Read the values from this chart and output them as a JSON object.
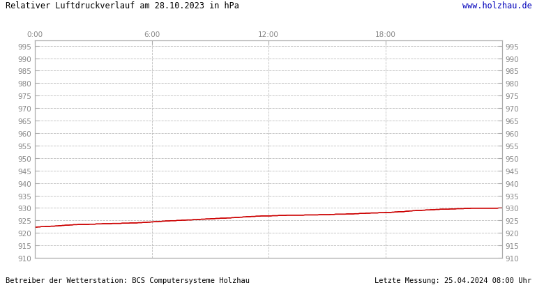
{
  "title": "Relativer Luftdruckverlauf am 28.10.2023 in hPa",
  "url_text": "www.holzhau.de",
  "footer_left": "Betreiber der Wetterstation: BCS Computersysteme Holzhau",
  "footer_right": "Letzte Messung: 25.04.2024 08:00 Uhr",
  "background_color": "#ffffff",
  "plot_bg_color": "#ffffff",
  "grid_color": "#bbbbbb",
  "line_color": "#cc0000",
  "title_color": "#000000",
  "url_color": "#0000bb",
  "footer_color": "#000000",
  "tick_label_color": "#888888",
  "ylim": [
    910,
    997
  ],
  "ytick_min": 910,
  "ytick_max": 995,
  "ytick_step": 5,
  "xtick_labels": [
    "0:00",
    "6:00",
    "12:00",
    "18:00"
  ],
  "xtick_positions": [
    0,
    360,
    720,
    1080
  ],
  "total_minutes": 1439,
  "pressure_data": [
    922.3,
    922.3,
    922.4,
    922.4,
    922.5,
    922.5,
    922.5,
    922.6,
    922.6,
    922.6,
    922.7,
    922.7,
    922.7,
    922.8,
    922.8,
    922.9,
    922.9,
    923.0,
    923.0,
    923.1,
    923.1,
    923.1,
    923.2,
    923.2,
    923.3,
    923.3,
    923.3,
    923.4,
    923.4,
    923.4,
    923.4,
    923.4,
    923.4,
    923.4,
    923.5,
    923.5,
    923.5,
    923.5,
    923.6,
    923.6,
    923.6,
    923.6,
    923.7,
    923.7,
    923.7,
    923.7,
    923.7,
    923.7,
    923.8,
    923.8,
    923.8,
    923.8,
    923.8,
    923.8,
    923.9,
    923.9,
    923.9,
    923.9,
    923.9,
    924.0,
    924.0,
    924.0,
    924.0,
    924.0,
    924.1,
    924.1,
    924.1,
    924.2,
    924.2,
    924.2,
    924.3,
    924.3,
    924.4,
    924.4,
    924.5,
    924.5,
    924.5,
    924.6,
    924.6,
    924.7,
    924.7,
    924.8,
    924.8,
    924.8,
    924.9,
    924.9,
    924.9,
    924.9,
    925.0,
    925.0,
    925.0,
    925.1,
    925.1,
    925.1,
    925.2,
    925.2,
    925.2,
    925.2,
    925.3,
    925.3,
    925.3,
    925.4,
    925.4,
    925.5,
    925.5,
    925.5,
    925.6,
    925.6,
    925.6,
    925.7,
    925.7,
    925.7,
    925.8,
    925.8,
    925.8,
    925.9,
    925.9,
    925.9,
    925.9,
    926.0,
    926.0,
    926.0,
    926.1,
    926.1,
    926.2,
    926.2,
    926.2,
    926.3,
    926.3,
    926.4,
    926.4,
    926.5,
    926.5,
    926.5,
    926.6,
    926.6,
    926.6,
    926.7,
    926.7,
    926.7,
    926.8,
    926.8,
    926.8,
    926.8,
    926.8,
    926.8,
    926.8,
    926.9,
    926.9,
    926.9,
    926.9,
    927.0,
    927.0,
    927.0,
    927.0,
    927.0,
    927.1,
    927.1,
    927.1,
    927.1,
    927.1,
    927.1,
    927.1,
    927.1,
    927.1,
    927.1,
    927.1,
    927.2,
    927.2,
    927.2,
    927.2,
    927.2,
    927.2,
    927.2,
    927.2,
    927.2,
    927.3,
    927.3,
    927.3,
    927.3,
    927.3,
    927.3,
    927.3,
    927.4,
    927.4,
    927.4,
    927.5,
    927.5,
    927.5,
    927.5,
    927.5,
    927.5,
    927.5,
    927.6,
    927.6,
    927.6,
    927.6,
    927.6,
    927.7,
    927.7,
    927.7,
    927.8,
    927.8,
    927.8,
    927.8,
    927.9,
    927.9,
    927.9,
    928.0,
    928.0,
    928.0,
    928.0,
    928.0,
    928.1,
    928.1,
    928.1,
    928.1,
    928.2,
    928.2,
    928.2,
    928.2,
    928.3,
    928.3,
    928.4,
    928.4,
    928.5,
    928.5,
    928.5,
    928.5,
    928.6,
    928.7,
    928.7,
    928.8,
    928.8,
    928.9,
    928.9,
    929.0,
    929.0,
    929.0,
    929.0,
    929.1,
    929.1,
    929.2,
    929.2,
    929.2,
    929.3,
    929.3,
    929.3,
    929.4,
    929.4,
    929.4,
    929.5,
    929.5,
    929.5,
    929.5,
    929.5,
    929.5,
    929.6,
    929.6,
    929.6,
    929.6,
    929.7,
    929.7,
    929.7,
    929.7,
    929.7,
    929.8,
    929.8,
    929.8,
    929.8,
    929.9,
    929.9,
    929.9,
    929.9,
    929.9,
    929.9,
    929.9,
    929.9,
    929.9,
    929.9,
    929.9,
    929.9,
    929.9,
    929.9,
    929.9,
    929.9,
    929.9,
    930.0,
    930.0,
    930.0
  ]
}
